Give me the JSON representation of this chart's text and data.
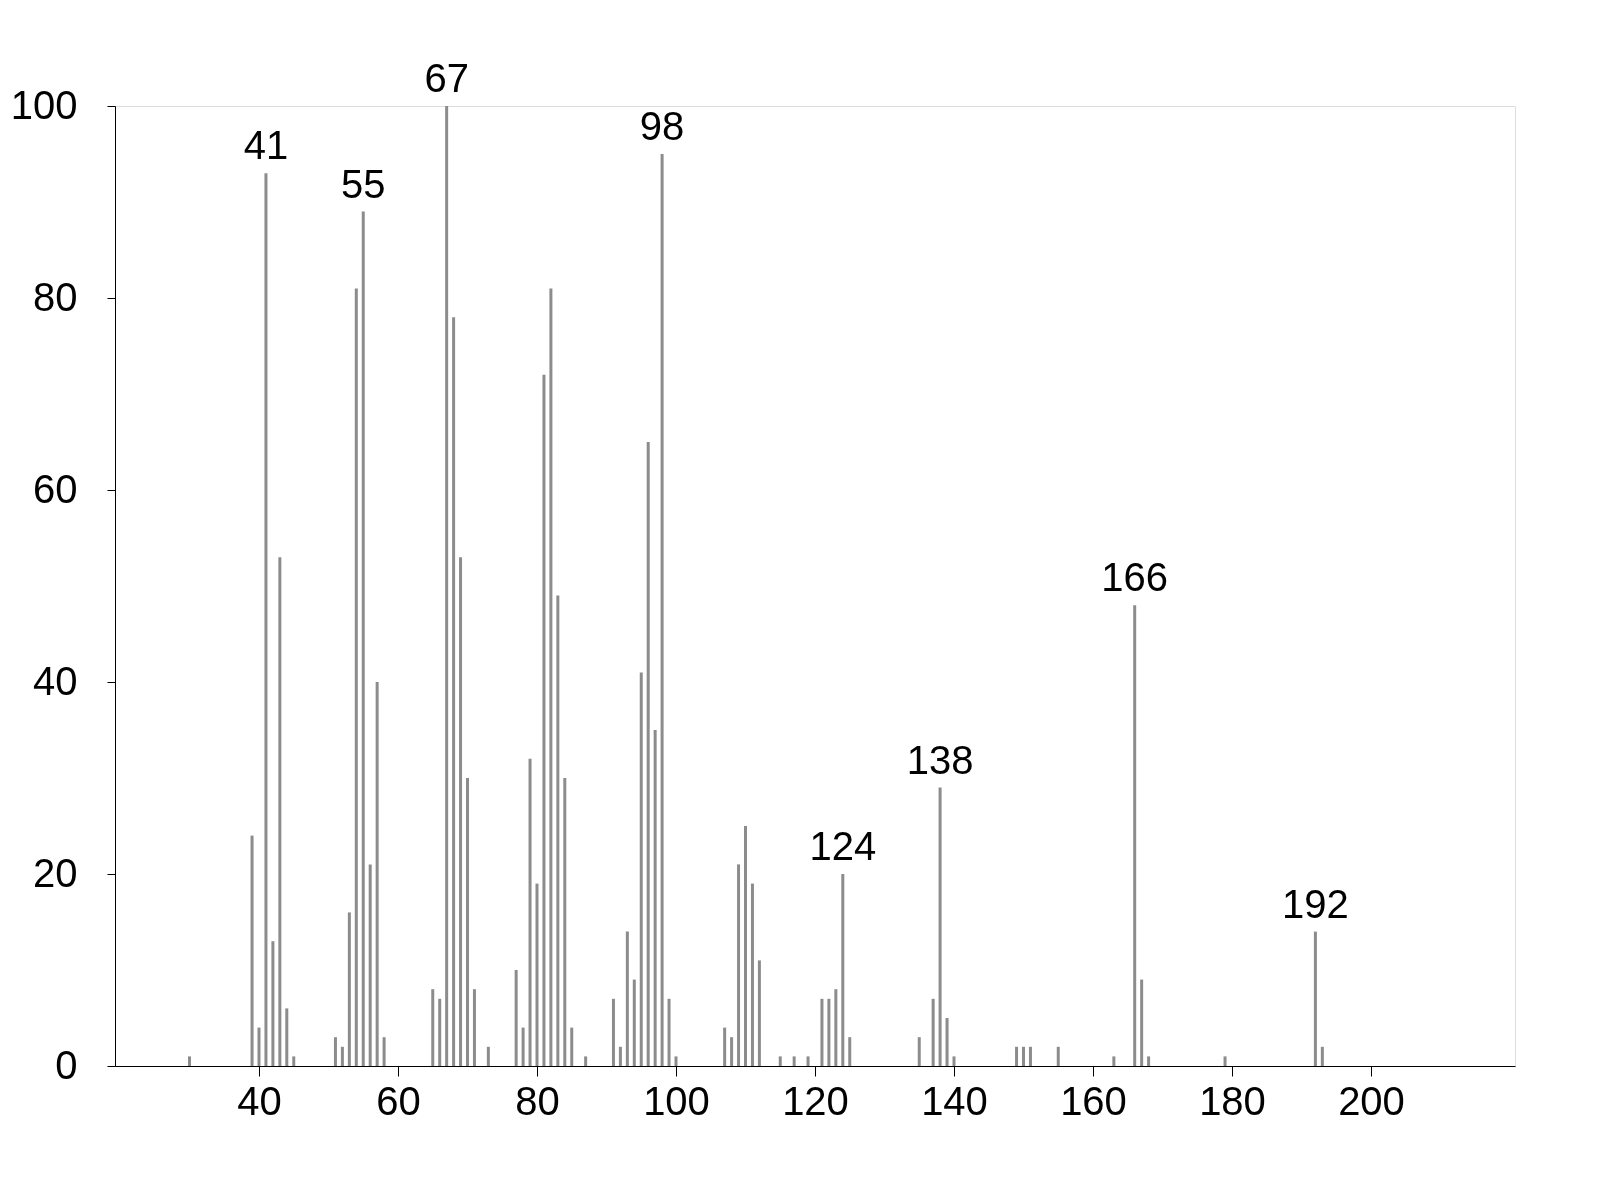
{
  "chart_data": {
    "type": "bar",
    "color": "#8c8c8c",
    "x": [
      30,
      39,
      40,
      41,
      42,
      43,
      44,
      45,
      51,
      52,
      53,
      54,
      55,
      56,
      57,
      58,
      65,
      66,
      67,
      68,
      69,
      70,
      71,
      73,
      77,
      78,
      79,
      80,
      81,
      82,
      83,
      84,
      85,
      87,
      91,
      92,
      93,
      94,
      95,
      96,
      97,
      98,
      99,
      100,
      107,
      108,
      109,
      110,
      111,
      112,
      115,
      117,
      119,
      121,
      122,
      123,
      124,
      125,
      135,
      137,
      138,
      139,
      140,
      149,
      150,
      151,
      155,
      163,
      166,
      167,
      168,
      179,
      192,
      193
    ],
    "values": [
      1,
      24,
      4,
      93,
      13,
      53,
      6,
      1,
      3,
      2,
      16,
      81,
      89,
      21,
      40,
      3,
      8,
      7,
      100,
      78,
      53,
      30,
      8,
      2,
      10,
      4,
      32,
      19,
      72,
      81,
      49,
      30,
      4,
      1,
      7,
      2,
      14,
      9,
      41,
      65,
      35,
      95,
      7,
      1,
      4,
      3,
      21,
      25,
      19,
      11,
      1,
      1,
      1,
      7,
      7,
      8,
      20,
      3,
      3,
      7,
      29,
      5,
      1,
      2,
      2,
      2,
      2,
      1,
      48,
      9,
      1,
      1,
      14,
      2
    ],
    "xlim": [
      20,
      220
    ],
    "xticks": [
      40,
      60,
      80,
      100,
      120,
      140,
      160,
      180,
      200
    ],
    "ylim": [
      0,
      100
    ],
    "yticks": [
      0,
      20,
      40,
      60,
      80,
      100
    ],
    "grid": false,
    "annotations": [
      {
        "text": "41",
        "x": 41,
        "y": 93
      },
      {
        "text": "55",
        "x": 55,
        "y": 89
      },
      {
        "text": "67",
        "x": 67,
        "y": 100
      },
      {
        "text": "98",
        "x": 98,
        "y": 95
      },
      {
        "text": "124",
        "x": 124,
        "y": 20
      },
      {
        "text": "138",
        "x": 138,
        "y": 29
      },
      {
        "text": "166",
        "x": 166,
        "y": 48
      },
      {
        "text": "192",
        "x": 192,
        "y": 14
      }
    ]
  }
}
